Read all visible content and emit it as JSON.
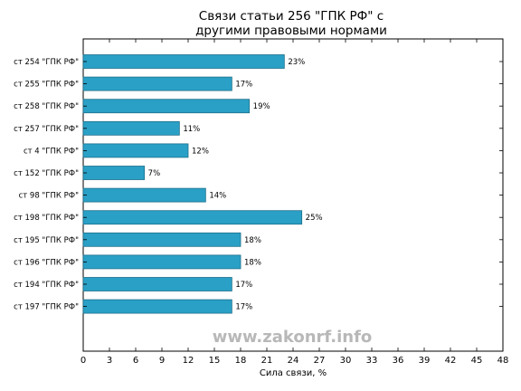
{
  "chart_data": {
    "type": "bar",
    "orientation": "horizontal",
    "title_lines": [
      "Связи статьи 256 \"ГПК РФ\" с",
      "другими правовыми нормами"
    ],
    "xlabel": "Сила связи, %",
    "ylabel": "",
    "xlim": [
      0,
      48
    ],
    "xticks": [
      0,
      3,
      6,
      9,
      12,
      15,
      18,
      21,
      24,
      27,
      30,
      33,
      36,
      39,
      42,
      45,
      48
    ],
    "categories": [
      "ст 254 \"ГПК РФ\"",
      "ст 255 \"ГПК РФ\"",
      "ст 258 \"ГПК РФ\"",
      "ст 257 \"ГПК РФ\"",
      "ст 4 \"ГПК РФ\"",
      "ст 152 \"ГПК РФ\"",
      "ст 98 \"ГПК РФ\"",
      "ст 198 \"ГПК РФ\"",
      "ст 195 \"ГПК РФ\"",
      "ст 196 \"ГПК РФ\"",
      "ст 194 \"ГПК РФ\"",
      "ст 197 \"ГПК РФ\""
    ],
    "values": [
      23,
      17,
      19,
      11,
      12,
      7,
      14,
      25,
      18,
      18,
      17,
      17
    ],
    "data_labels": [
      "23%",
      "17%",
      "19%",
      "11%",
      "12%",
      "7%",
      "14%",
      "25%",
      "18%",
      "18%",
      "17%",
      "17%"
    ],
    "grid": false,
    "legend": "none",
    "bar_color": "#2aa0c6",
    "bar_edge_color": "#1f6f8a"
  },
  "watermark": "www.zakonrf.info"
}
